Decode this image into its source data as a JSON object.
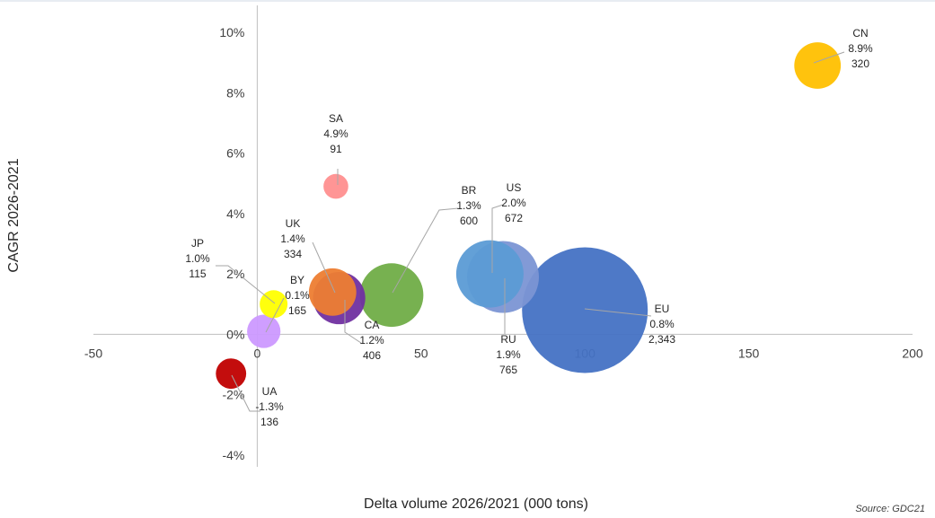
{
  "chart_data": {
    "type": "bubble",
    "title": "",
    "xlabel": "Delta volume 2026/2021 (000 tons)",
    "ylabel": "CAGR 2026-2021",
    "xlim": [
      -50,
      200
    ],
    "ylim": [
      -4,
      10
    ],
    "x_ticks": [
      "-50",
      "0",
      "50",
      "100",
      "150",
      "200"
    ],
    "y_ticks": [
      "-4%",
      "-2%",
      "0%",
      "2%",
      "4%",
      "6%",
      "8%",
      "10%"
    ],
    "grid": false,
    "size_unit": "volume (000 tons)",
    "points": [
      {
        "name": "EU",
        "cagr_label": "0.8%",
        "size_label": "2,343",
        "x": 100,
        "y": 0.8,
        "size": 2343,
        "color": "#4472c4"
      },
      {
        "name": "RU",
        "cagr_label": "1.9%",
        "size_label": "765",
        "x": 75,
        "y": 1.9,
        "size": 765,
        "color": "#7b95d4"
      },
      {
        "name": "US",
        "cagr_label": "2.0%",
        "size_label": "672",
        "x": 71,
        "y": 2.0,
        "size": 672,
        "color": "#5b9bd5"
      },
      {
        "name": "BR",
        "cagr_label": "1.3%",
        "size_label": "600",
        "x": 41,
        "y": 1.3,
        "size": 600,
        "color": "#70ad47"
      },
      {
        "name": "CA",
        "cagr_label": "1.2%",
        "size_label": "406",
        "x": 25,
        "y": 1.2,
        "size": 406,
        "color": "#7030a0"
      },
      {
        "name": "UK",
        "cagr_label": "1.4%",
        "size_label": "334",
        "x": 23,
        "y": 1.4,
        "size": 334,
        "color": "#ed7d31"
      },
      {
        "name": "CN",
        "cagr_label": "8.9%",
        "size_label": "320",
        "x": 171,
        "y": 8.9,
        "size": 320,
        "color": "#ffc000"
      },
      {
        "name": "BY",
        "cagr_label": "0.1%",
        "size_label": "165",
        "x": 2,
        "y": 0.1,
        "size": 165,
        "color": "#cc99ff"
      },
      {
        "name": "UA",
        "cagr_label": "-1.3%",
        "size_label": "136",
        "x": -8,
        "y": -1.3,
        "size": 136,
        "color": "#c00000"
      },
      {
        "name": "JP",
        "cagr_label": "1.0%",
        "size_label": "115",
        "x": 5,
        "y": 1.0,
        "size": 115,
        "color": "#ffff00"
      },
      {
        "name": "SA",
        "cagr_label": "4.9%",
        "size_label": "91",
        "x": 24,
        "y": 4.9,
        "size": 91,
        "color": "#ff8f8f"
      }
    ],
    "source": "Source: GDC21"
  }
}
